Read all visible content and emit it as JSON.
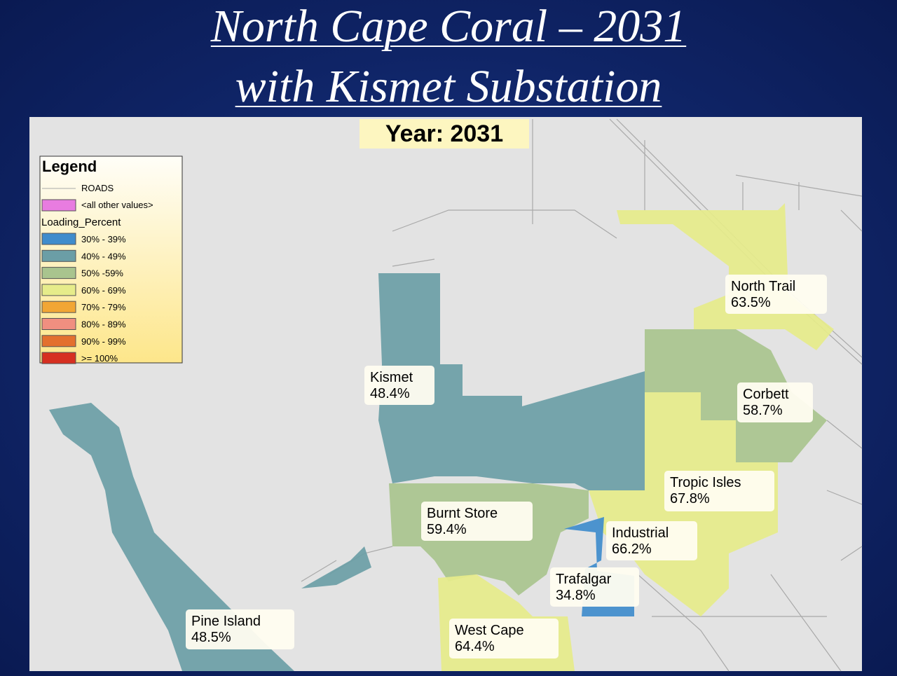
{
  "title": {
    "line1": "North Cape Coral – 2031",
    "line2": "with Kismet Substation"
  },
  "map": {
    "year_label": "Year: 2031",
    "legend": {
      "title": "Legend",
      "roads": "ROADS",
      "other": "<all other values>",
      "other_color": "#e87ce0",
      "field": "Loading_Percent",
      "classes": [
        {
          "label": "30% - 39%",
          "color": "#3f8ccc"
        },
        {
          "label": "40% - 49%",
          "color": "#6b9ea6"
        },
        {
          "label": "50% -59%",
          "color": "#a9c48e"
        },
        {
          "label": "60% - 69%",
          "color": "#e6ec8a"
        },
        {
          "label": "70% - 79%",
          "color": "#f1a634"
        },
        {
          "label": "80% - 89%",
          "color": "#f08f80"
        },
        {
          "label": "90% - 99%",
          "color": "#e3702e"
        },
        {
          "label": ">= 100%",
          "color": "#d62f20"
        }
      ]
    },
    "areas": [
      {
        "name": "North Trail",
        "value": "63.5%"
      },
      {
        "name": "Kismet",
        "value": "48.4%"
      },
      {
        "name": "Corbett",
        "value": "58.7%"
      },
      {
        "name": "Tropic Isles",
        "value": "67.8%"
      },
      {
        "name": "Burnt Store",
        "value": "59.4%"
      },
      {
        "name": "Industrial",
        "value": "66.2%"
      },
      {
        "name": "Trafalgar",
        "value": "34.8%"
      },
      {
        "name": "West Cape",
        "value": "64.4%"
      },
      {
        "name": "Pine Island",
        "value": "48.5%"
      }
    ]
  }
}
